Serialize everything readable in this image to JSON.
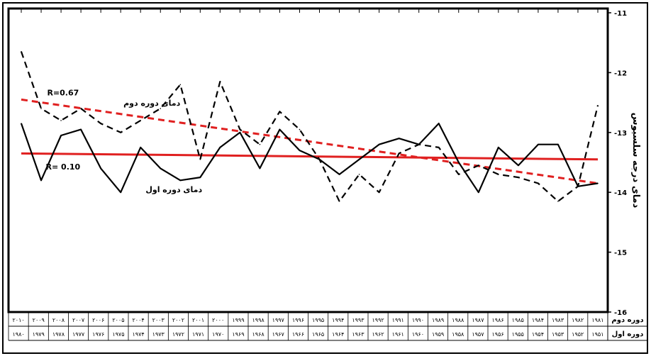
{
  "chart_data": {
    "type": "line",
    "title": "",
    "ylabel": "دمای درجه سلسیوس",
    "xlabel": "",
    "ylim": [
      -16,
      -11
    ],
    "y_axis_side": "right",
    "yticks": [
      "-11",
      "-12",
      "-13",
      "-14",
      "-15",
      "-16"
    ],
    "grid": false,
    "legend": "none",
    "table_rows": [
      {
        "label": "دوره دوم",
        "years": [
          "۲۰۱۰",
          "۲۰۰۹",
          "۲۰۰۸",
          "۲۰۰۷",
          "۲۰۰۶",
          "۲۰۰۵",
          "۲۰۰۴",
          "۲۰۰۳",
          "۲۰۰۲",
          "۲۰۰۱",
          "۲۰۰۰",
          "۱۹۹۹",
          "۱۹۹۸",
          "۱۹۹۷",
          "۱۹۹۶",
          "۱۹۹۵",
          "۱۹۹۴",
          "۱۹۹۳",
          "۱۹۹۲",
          "۱۹۹۱",
          "۱۹۹۰",
          "۱۹۸۹",
          "۱۹۸۸",
          "۱۹۸۷",
          "۱۹۸۶",
          "۱۹۸۵",
          "۱۹۸۴",
          "۱۹۸۳",
          "۱۹۸۲",
          "۱۹۸۱"
        ]
      },
      {
        "label": "دوره اول",
        "years": [
          "۱۹۸۰",
          "۱۹۷۹",
          "۱۹۷۸",
          "۱۹۷۷",
          "۱۹۷۶",
          "۱۹۷۵",
          "۱۹۷۴",
          "۱۹۷۳",
          "۱۹۷۲",
          "۱۹۷۱",
          "۱۹۷۰",
          "۱۹۶۹",
          "۱۹۶۸",
          "۱۹۶۷",
          "۱۹۶۶",
          "۱۹۶۵",
          "۱۹۶۴",
          "۱۹۶۳",
          "۱۹۶۲",
          "۱۹۶۱",
          "۱۹۶۰",
          "۱۹۵۹",
          "۱۹۵۸",
          "۱۹۵۷",
          "۱۹۵۶",
          "۱۹۵۵",
          "۱۹۵۴",
          "۱۹۵۳",
          "۱۹۵۲",
          "۱۹۵۱"
        ]
      }
    ],
    "series": [
      {
        "name": "دمای دوره اول",
        "style": "solid",
        "color": "#000000",
        "values": [
          -12.85,
          -13.8,
          -13.05,
          -12.95,
          -13.6,
          -14.0,
          -13.25,
          -13.6,
          -13.8,
          -13.75,
          -13.25,
          -13.0,
          -13.6,
          -12.95,
          -13.3,
          -13.45,
          -13.7,
          -13.45,
          -13.2,
          -13.1,
          -13.2,
          -12.85,
          -13.5,
          -14.0,
          -13.25,
          -13.55,
          -13.2,
          -13.2,
          -13.9,
          -13.85
        ]
      },
      {
        "name": "دمای دوره دوم",
        "style": "dashed",
        "color": "#000000",
        "values": [
          -11.65,
          -12.6,
          -12.8,
          -12.6,
          -12.85,
          -13.0,
          -12.8,
          -12.6,
          -12.2,
          -13.45,
          -12.15,
          -12.95,
          -13.2,
          -12.65,
          -12.95,
          -13.45,
          -14.15,
          -13.7,
          -14.0,
          -13.35,
          -13.2,
          -13.25,
          -13.7,
          -13.55,
          -13.7,
          -13.75,
          -13.85,
          -14.15,
          -13.9,
          -12.55
        ]
      }
    ],
    "trendlines": [
      {
        "series": "دمای دوره اول",
        "style": "solid",
        "color": "#e02020",
        "start": -13.35,
        "end": -13.45,
        "label": "R= 0.10"
      },
      {
        "series": "دمای دوره دوم",
        "style": "dashed",
        "color": "#e02020",
        "start": -12.45,
        "end": -13.85,
        "label": "R=0.67"
      }
    ],
    "annotations": [
      {
        "text": "دمای دوره دوم",
        "series": "دمای دوره دوم"
      },
      {
        "text": "دمای دوره اول",
        "series": "دمای دوره اول"
      },
      {
        "text": "R=0.67",
        "series": "دمای دوره دوم"
      },
      {
        "text": "R= 0.10",
        "series": "دمای دوره اول"
      }
    ]
  }
}
